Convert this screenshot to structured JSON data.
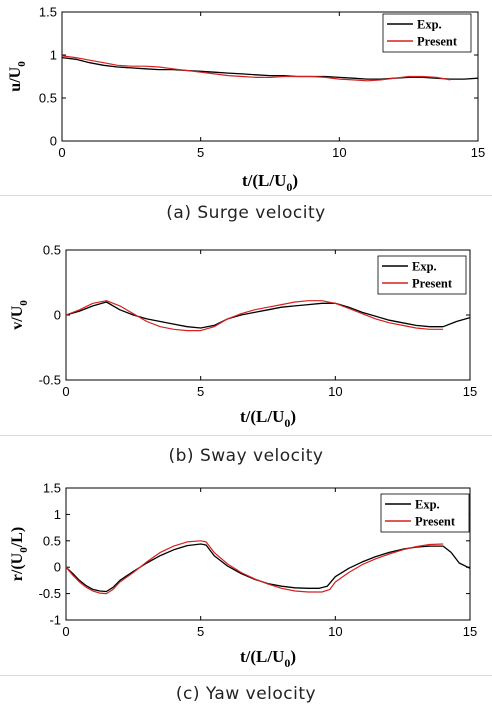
{
  "colors": {
    "exp": "#000000",
    "present": "#d62020",
    "axis": "#000000"
  },
  "chart_data": [
    {
      "type": "line",
      "caption": "(a)  Surge velocity",
      "xlabel": "t/(L/U",
      "xlabel_sub": "0",
      "xlabel_end": ")",
      "ylabel": "u/U",
      "ylabel_sub": "0",
      "xlim": [
        0,
        15
      ],
      "ylim": [
        0,
        1.5
      ],
      "xticks": [
        "0",
        "5",
        "10",
        "15"
      ],
      "yticks": [
        "0",
        "0.5",
        "1",
        "1.5"
      ],
      "grid": false,
      "legend_position": "top-right",
      "series": [
        {
          "name": "Exp.",
          "x": [
            0,
            0.5,
            1,
            1.5,
            2,
            2.5,
            3,
            3.5,
            4,
            4.5,
            5,
            5.5,
            6,
            6.5,
            7,
            7.5,
            8,
            8.5,
            9,
            9.5,
            10,
            10.5,
            11,
            11.5,
            12,
            12.5,
            13,
            13.5,
            14,
            14.5,
            15
          ],
          "values": [
            0.97,
            0.95,
            0.91,
            0.88,
            0.86,
            0.85,
            0.84,
            0.83,
            0.83,
            0.82,
            0.81,
            0.8,
            0.79,
            0.78,
            0.77,
            0.76,
            0.76,
            0.75,
            0.75,
            0.75,
            0.74,
            0.73,
            0.72,
            0.72,
            0.73,
            0.74,
            0.74,
            0.73,
            0.72,
            0.72,
            0.73
          ]
        },
        {
          "name": "Present",
          "x": [
            0,
            0.5,
            1,
            1.5,
            2,
            2.5,
            3,
            3.5,
            4,
            4.5,
            5,
            5.5,
            6,
            6.5,
            7,
            7.5,
            8,
            8.5,
            9,
            9.5,
            10,
            10.5,
            11,
            11.5,
            12,
            12.5,
            13,
            13.5,
            14
          ],
          "values": [
            0.99,
            0.97,
            0.94,
            0.91,
            0.88,
            0.87,
            0.87,
            0.86,
            0.84,
            0.82,
            0.8,
            0.78,
            0.76,
            0.75,
            0.74,
            0.74,
            0.75,
            0.75,
            0.75,
            0.74,
            0.72,
            0.71,
            0.7,
            0.71,
            0.73,
            0.75,
            0.75,
            0.74,
            0.71
          ]
        }
      ]
    },
    {
      "type": "line",
      "caption": "(b)  Sway velocity",
      "xlabel": "t/(L/U",
      "xlabel_sub": "0",
      "xlabel_end": ")",
      "ylabel": "v/U",
      "ylabel_sub": "0",
      "xlim": [
        0,
        15
      ],
      "ylim": [
        -0.5,
        0.5
      ],
      "xticks": [
        "0",
        "5",
        "10",
        "15"
      ],
      "yticks": [
        "-0.5",
        "0",
        "0.5"
      ],
      "grid": false,
      "legend_position": "top-right",
      "series": [
        {
          "name": "Exp.",
          "x": [
            0,
            0.5,
            1,
            1.5,
            2,
            2.5,
            3,
            3.5,
            4,
            4.5,
            5,
            5.5,
            6,
            6.5,
            7,
            7.5,
            8,
            8.5,
            9,
            9.5,
            10,
            10.5,
            11,
            11.5,
            12,
            12.5,
            13,
            13.5,
            14,
            14.5,
            15
          ],
          "values": [
            0.0,
            0.03,
            0.07,
            0.1,
            0.04,
            0.0,
            -0.03,
            -0.05,
            -0.07,
            -0.09,
            -0.1,
            -0.08,
            -0.03,
            0.0,
            0.02,
            0.04,
            0.06,
            0.07,
            0.08,
            0.09,
            0.09,
            0.06,
            0.02,
            -0.01,
            -0.04,
            -0.06,
            -0.08,
            -0.09,
            -0.09,
            -0.05,
            -0.02
          ]
        },
        {
          "name": "Present",
          "x": [
            0,
            0.5,
            1,
            1.5,
            2,
            2.5,
            3,
            3.5,
            4,
            4.5,
            5,
            5.5,
            6,
            6.5,
            7,
            7.5,
            8,
            8.5,
            9,
            9.5,
            10,
            10.5,
            11,
            11.5,
            12,
            12.5,
            13,
            13.5,
            14
          ],
          "values": [
            0.0,
            0.04,
            0.09,
            0.11,
            0.07,
            0.01,
            -0.05,
            -0.09,
            -0.11,
            -0.12,
            -0.12,
            -0.09,
            -0.03,
            0.01,
            0.04,
            0.06,
            0.08,
            0.1,
            0.11,
            0.11,
            0.09,
            0.05,
            0.01,
            -0.03,
            -0.06,
            -0.08,
            -0.1,
            -0.11,
            -0.11
          ]
        }
      ]
    },
    {
      "type": "line",
      "caption": "(c)  Yaw velocity",
      "xlabel": "t/(L/U",
      "xlabel_sub": "0",
      "xlabel_end": ")",
      "ylabel": "r/(U",
      "ylabel_sub": "0",
      "ylabel_end": "/L)",
      "xlim": [
        0,
        15
      ],
      "ylim": [
        -1,
        1.5
      ],
      "xticks": [
        "0",
        "5",
        "10",
        "15"
      ],
      "yticks": [
        "-1",
        "-0.5",
        "0",
        "0.5",
        "1",
        "1.5"
      ],
      "grid": false,
      "legend_position": "top-right",
      "series": [
        {
          "name": "Exp.",
          "x": [
            0,
            0.25,
            0.5,
            0.75,
            1,
            1.25,
            1.5,
            1.75,
            2,
            2.5,
            3,
            3.5,
            4,
            4.5,
            5,
            5.2,
            5.5,
            6,
            6.5,
            7,
            7.5,
            8,
            8.5,
            9,
            9.4,
            9.7,
            10,
            10.5,
            11,
            11.5,
            12,
            12.5,
            13,
            13.5,
            14,
            14.3,
            14.6,
            15
          ],
          "values": [
            0.0,
            -0.12,
            -0.25,
            -0.35,
            -0.42,
            -0.45,
            -0.46,
            -0.38,
            -0.25,
            -0.08,
            0.08,
            0.22,
            0.33,
            0.41,
            0.44,
            0.42,
            0.22,
            0.02,
            -0.12,
            -0.23,
            -0.31,
            -0.36,
            -0.39,
            -0.4,
            -0.4,
            -0.36,
            -0.18,
            -0.02,
            0.1,
            0.2,
            0.28,
            0.34,
            0.38,
            0.4,
            0.4,
            0.28,
            0.08,
            -0.02
          ]
        },
        {
          "name": "Present",
          "x": [
            0,
            0.25,
            0.5,
            0.75,
            1,
            1.25,
            1.5,
            1.75,
            2,
            2.5,
            3,
            3.5,
            4,
            4.5,
            5,
            5.2,
            5.5,
            6,
            6.5,
            7,
            7.5,
            8,
            8.5,
            9,
            9.5,
            9.8,
            10,
            10.5,
            11,
            11.5,
            12,
            12.5,
            13,
            13.5,
            14
          ],
          "values": [
            0.0,
            -0.15,
            -0.28,
            -0.38,
            -0.45,
            -0.49,
            -0.5,
            -0.42,
            -0.28,
            -0.1,
            0.1,
            0.28,
            0.4,
            0.48,
            0.5,
            0.48,
            0.28,
            0.06,
            -0.1,
            -0.22,
            -0.32,
            -0.4,
            -0.45,
            -0.47,
            -0.47,
            -0.42,
            -0.28,
            -0.1,
            0.05,
            0.16,
            0.25,
            0.33,
            0.39,
            0.43,
            0.44
          ]
        }
      ]
    }
  ]
}
